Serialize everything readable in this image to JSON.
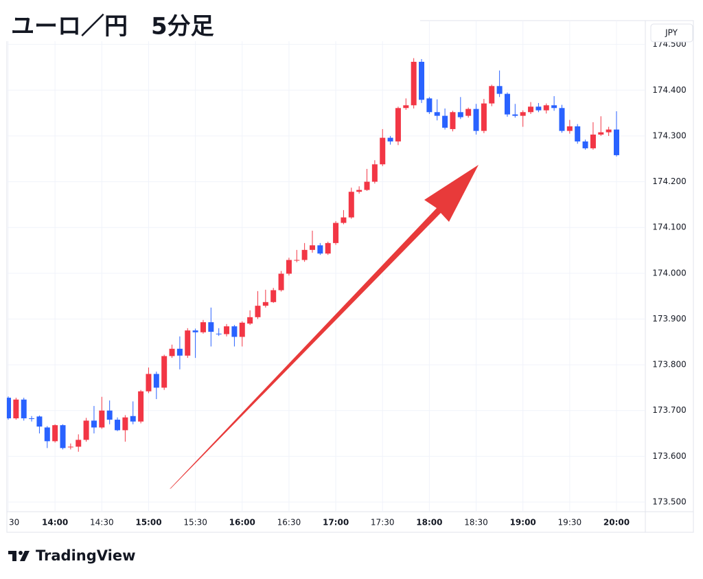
{
  "chart_data": {
    "type": "candlestick",
    "title": "ユーロ／円　5分足",
    "currency_label": "JPY",
    "watermark": "TradingView",
    "categories": [
      "30",
      null,
      null,
      null,
      null,
      null,
      "14:00",
      null,
      null,
      null,
      null,
      null,
      "14:30",
      null,
      null,
      null,
      null,
      null,
      "15:00",
      null,
      null,
      null,
      null,
      null,
      "15:30",
      null,
      null,
      null,
      null,
      null,
      "16:00",
      null,
      null,
      null,
      null,
      null,
      "16:30",
      null,
      null,
      null,
      null,
      null,
      "17:00",
      null,
      null,
      null,
      null,
      null,
      "17:30",
      null,
      null,
      null,
      null,
      null,
      "18:00",
      null,
      null,
      null,
      null,
      null,
      "18:30",
      null,
      null,
      null,
      null,
      null,
      "19:00",
      null,
      null,
      null,
      null,
      null,
      "19:30",
      null,
      null,
      null,
      null,
      null,
      "20:00"
    ],
    "open": [
      173.728,
      173.683,
      173.724,
      173.683,
      173.687,
      173.663,
      173.633,
      173.668,
      173.62,
      173.621,
      173.636,
      173.678,
      173.663,
      173.7,
      173.68,
      173.657,
      173.688,
      173.676,
      173.742,
      173.78,
      173.75,
      173.819,
      173.835,
      173.82,
      173.875,
      173.871,
      173.893,
      173.868,
      173.867,
      173.884,
      173.861,
      173.89,
      173.904,
      173.929,
      173.937,
      173.963,
      173.999,
      174.028,
      174.029,
      174.051,
      174.061,
      174.043,
      174.066,
      174.11,
      174.122,
      174.178,
      174.182,
      174.2,
      174.238,
      174.296,
      174.288,
      174.361,
      174.367,
      174.462,
      174.382,
      174.352,
      174.344,
      174.315,
      174.352,
      174.344,
      174.359,
      174.311,
      174.371,
      174.409,
      174.392,
      174.347,
      174.344,
      174.352,
      174.364,
      174.356,
      174.367,
      174.361,
      174.311,
      174.321,
      174.288,
      174.273,
      174.303,
      174.308,
      174.314
    ],
    "high": [
      173.731,
      173.728,
      173.728,
      173.688,
      173.689,
      173.666,
      173.67,
      173.67,
      173.628,
      173.648,
      173.684,
      173.71,
      173.73,
      173.722,
      173.685,
      173.69,
      173.72,
      173.745,
      173.794,
      173.785,
      173.822,
      173.844,
      173.862,
      173.88,
      173.879,
      173.898,
      173.925,
      173.88,
      173.889,
      173.887,
      173.895,
      173.919,
      173.961,
      173.964,
      173.968,
      174.005,
      174.034,
      174.051,
      174.066,
      174.093,
      174.066,
      174.069,
      174.114,
      174.138,
      174.187,
      174.19,
      174.228,
      174.247,
      174.315,
      174.3,
      174.364,
      174.382,
      174.47,
      174.468,
      174.385,
      174.38,
      174.36,
      174.355,
      174.385,
      174.362,
      174.37,
      174.381,
      174.412,
      174.443,
      174.395,
      174.37,
      174.356,
      174.374,
      174.372,
      174.371,
      174.387,
      174.368,
      174.335,
      174.326,
      174.292,
      174.33,
      174.343,
      174.32,
      174.354
    ],
    "low": [
      173.68,
      173.68,
      173.678,
      173.676,
      173.65,
      173.618,
      173.63,
      173.615,
      173.615,
      173.61,
      173.632,
      173.65,
      173.66,
      173.67,
      173.655,
      173.632,
      173.67,
      173.672,
      173.738,
      173.725,
      173.745,
      173.815,
      173.79,
      173.815,
      173.815,
      173.868,
      173.84,
      173.863,
      173.862,
      173.84,
      173.84,
      173.887,
      173.9,
      173.925,
      173.935,
      173.96,
      173.995,
      174.024,
      174.025,
      174.045,
      174.04,
      174.04,
      174.062,
      174.107,
      174.119,
      174.174,
      174.18,
      174.196,
      174.234,
      174.281,
      174.28,
      174.357,
      174.36,
      174.372,
      174.348,
      174.334,
      174.314,
      174.31,
      174.337,
      174.34,
      174.303,
      174.306,
      174.365,
      174.385,
      174.342,
      174.34,
      174.32,
      174.348,
      174.352,
      174.349,
      174.355,
      174.307,
      174.305,
      174.283,
      174.27,
      174.27,
      174.3,
      174.3,
      174.255
    ],
    "close": [
      173.683,
      173.724,
      173.683,
      173.682,
      173.665,
      173.633,
      173.668,
      173.618,
      173.621,
      173.636,
      173.678,
      173.663,
      173.7,
      173.68,
      173.657,
      173.685,
      173.676,
      173.742,
      173.78,
      173.75,
      173.819,
      173.835,
      173.82,
      173.875,
      173.871,
      173.893,
      173.872,
      173.867,
      173.884,
      173.861,
      173.892,
      173.904,
      173.929,
      173.937,
      173.963,
      173.999,
      174.029,
      174.029,
      174.051,
      174.061,
      174.043,
      174.066,
      174.11,
      174.122,
      174.178,
      174.182,
      174.2,
      174.238,
      174.296,
      174.288,
      174.361,
      174.367,
      174.462,
      174.379,
      174.352,
      174.344,
      174.318,
      174.352,
      174.341,
      174.359,
      174.311,
      174.371,
      174.409,
      174.392,
      174.347,
      174.344,
      174.352,
      174.364,
      174.356,
      174.367,
      174.361,
      174.311,
      174.321,
      174.288,
      174.273,
      174.303,
      174.308,
      174.314,
      174.258
    ],
    "up_color": "#f23645",
    "down_color": "#2962ff",
    "ylim": [
      173.479,
      174.51
    ],
    "yticks": [
      {
        "value": 173.5,
        "label": "173.500"
      },
      {
        "value": 173.6,
        "label": "173.600"
      },
      {
        "value": 173.7,
        "label": "173.700"
      },
      {
        "value": 173.8,
        "label": "173.800"
      },
      {
        "value": 173.9,
        "label": "173.900"
      },
      {
        "value": 174.0,
        "label": "174.000"
      },
      {
        "value": 174.1,
        "label": "174.100"
      },
      {
        "value": 174.2,
        "label": "174.200"
      },
      {
        "value": 174.3,
        "label": "174.300"
      },
      {
        "value": 174.4,
        "label": "174.400"
      },
      {
        "value": 174.5,
        "label": "174.500"
      }
    ],
    "grid": true
  }
}
